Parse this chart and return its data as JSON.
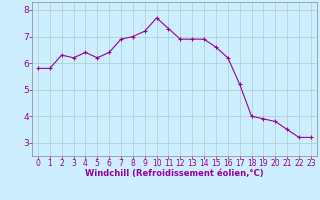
{
  "x": [
    0,
    1,
    2,
    3,
    4,
    5,
    6,
    7,
    8,
    9,
    10,
    11,
    12,
    13,
    14,
    15,
    16,
    17,
    18,
    19,
    20,
    21,
    22,
    23
  ],
  "y": [
    5.8,
    5.8,
    6.3,
    6.2,
    6.4,
    6.2,
    6.4,
    6.9,
    7.0,
    7.2,
    7.7,
    7.3,
    6.9,
    6.9,
    6.9,
    6.6,
    6.2,
    5.2,
    4.0,
    3.9,
    3.8,
    3.5,
    3.2,
    3.2
  ],
  "line_color": "#990099",
  "marker": "+",
  "marker_size": 3,
  "line_width": 0.8,
  "background_color": "#cceeff",
  "grid_color": "#aacccc",
  "xlabel": "Windchill (Refroidissement éolien,°C)",
  "xlabel_color": "#990099",
  "tick_color": "#990099",
  "ylim": [
    2.5,
    8.3
  ],
  "xlim": [
    -0.5,
    23.5
  ],
  "yticks": [
    3,
    4,
    5,
    6,
    7,
    8
  ],
  "xticks": [
    0,
    1,
    2,
    3,
    4,
    5,
    6,
    7,
    8,
    9,
    10,
    11,
    12,
    13,
    14,
    15,
    16,
    17,
    18,
    19,
    20,
    21,
    22,
    23
  ],
  "spine_color": "#888888",
  "tick_fontsize": 5.5,
  "xlabel_fontsize": 6.0,
  "ylabel_fontsize": 6.5
}
